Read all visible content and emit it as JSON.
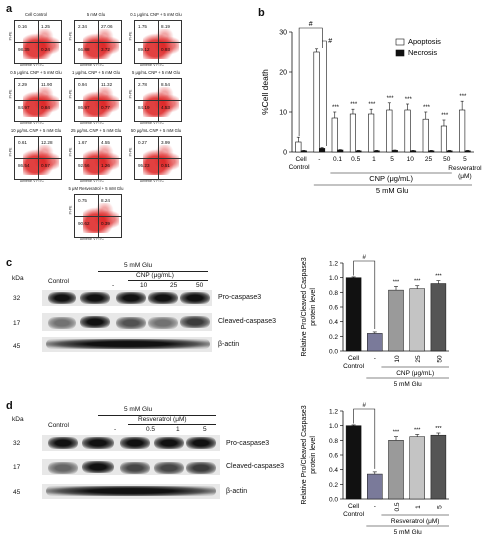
{
  "panel_a": {
    "letter": "a",
    "plots": [
      {
        "title": "Cell Control",
        "q": [
          "0.16",
          "1.25",
          "98.35",
          "0.24"
        ]
      },
      {
        "title": "5 mM Glu",
        "q": [
          "2.34",
          "27.06",
          "66.88",
          "3.72"
        ]
      },
      {
        "title": "0.1 μg/mL CNP + 5 mM Glu",
        "q": [
          "1.75",
          "8.19",
          "89.12",
          "0.93"
        ]
      },
      {
        "title": "0.5 μg/mL CNP + 5 mM Glu",
        "q": [
          "2.29",
          "11.90",
          "84.97",
          "0.84"
        ]
      },
      {
        "title": "1 μg/mL CNP + 5 mM Glu",
        "q": [
          "0.94",
          "11.32",
          "86.97",
          "0.77"
        ]
      },
      {
        "title": "5 μg/mL CNP + 5 mM Glu",
        "q": [
          "2.78",
          "8.54",
          "84.19",
          "4.53"
        ]
      },
      {
        "title": "10 μg/mL CNP + 5 mM Glu",
        "q": [
          "0.61",
          "12.28",
          "86.54",
          "0.57"
        ]
      },
      {
        "title": "25 μg/mL CNP + 5 mM Glu",
        "q": [
          "1.67",
          "4.55",
          "92.56",
          "1.26"
        ]
      },
      {
        "title": "50 μg/mL CNP + 5 mM Glu",
        "q": [
          "0.27",
          "3.99",
          "95.23",
          "0.51"
        ]
      },
      {
        "title": "5 μM Resveratrol + 5 mM Glu",
        "q": [
          "0.75",
          "8.24",
          "90.62",
          "0.39"
        ]
      }
    ],
    "x_axis": "Annexin V FITC",
    "y_axis": "PI-PE"
  },
  "panel_b": {
    "letter": "b",
    "chart_data": {
      "type": "bar",
      "ylabel": "%Cell death",
      "ylim": [
        0,
        30
      ],
      "yticks": [
        "0",
        "10",
        "20",
        "30"
      ],
      "categories": [
        "Cell Control",
        "-",
        "0.1",
        "0.5",
        "1",
        "5",
        "10",
        "25",
        "50",
        "5"
      ],
      "series": [
        {
          "name": "Apoptosis",
          "values": [
            2.5,
            25,
            8.5,
            9.5,
            9.5,
            10.5,
            10.5,
            8.2,
            6.5,
            10.5
          ],
          "errors": [
            1.2,
            0.8,
            1.5,
            1.2,
            1.2,
            1.8,
            1.5,
            1.8,
            1.5,
            2.2
          ],
          "color": "#ffffff"
        },
        {
          "name": "Necrosis",
          "values": [
            0.3,
            0.9,
            0.5,
            0.3,
            0.3,
            0.4,
            0.3,
            0.3,
            0.3,
            0.3
          ],
          "errors": [
            0.1,
            0.2,
            0.1,
            0.1,
            0.1,
            0.1,
            0.1,
            0.1,
            0.1,
            0.1
          ],
          "color": "#111111"
        }
      ],
      "significance": [
        "",
        "",
        "***",
        "***",
        "***",
        "***",
        "***",
        "***",
        "***",
        "***"
      ],
      "hash": "#",
      "group_labels": {
        "cnp": "CNP (μg/mL)",
        "res": "Resveratrol",
        "res_unit": "(μM)",
        "glu": "5 mM Glu"
      }
    }
  },
  "panel_c": {
    "letter": "c",
    "kda": [
      "kDa",
      "32",
      "17",
      "45"
    ],
    "blot_header": {
      "glu": "5 mM Glu",
      "agent": "CNP (μg/mL)",
      "lanes": [
        "Control",
        "-",
        "10",
        "25",
        "50"
      ]
    },
    "band_labels": [
      "Pro-caspase3",
      "Cleaved-caspase3",
      "β-actin"
    ],
    "chart_data": {
      "type": "bar",
      "ylabel": "Relative Pro/Cleaved Caspase3 protein level",
      "ylim": [
        0,
        1.2
      ],
      "yticks": [
        "0.0",
        "0.2",
        "0.4",
        "0.6",
        "0.8",
        "1.0",
        "1.2"
      ],
      "categories": [
        "Cell Control",
        "-",
        "10",
        "25",
        "50"
      ],
      "values": [
        1.0,
        0.24,
        0.83,
        0.85,
        0.92
      ],
      "errors": [
        0.01,
        0.02,
        0.05,
        0.04,
        0.04
      ],
      "colors": [
        "#111111",
        "#7a7a9a",
        "#9a9a9a",
        "#c4c4c4",
        "#555555"
      ],
      "significance": [
        "",
        "",
        "***",
        "***",
        "***"
      ],
      "hash": "#",
      "group_labels": {
        "agent": "CNP (μg/mL)",
        "glu": "5 mM Glu"
      }
    }
  },
  "panel_d": {
    "letter": "d",
    "kda": [
      "kDa",
      "32",
      "17",
      "45"
    ],
    "blot_header": {
      "glu": "5 mM Glu",
      "agent": "Resveratrol (μM)",
      "lanes": [
        "Control",
        "-",
        "0.5",
        "1",
        "5"
      ]
    },
    "band_labels": [
      "Pro-caspase3",
      "Cleaved-caspase3",
      "β-actin"
    ],
    "chart_data": {
      "type": "bar",
      "ylabel": "Relative Pro/Cleaved Caspase3 protein level",
      "ylim": [
        0,
        1.2
      ],
      "yticks": [
        "0.0",
        "0.2",
        "0.4",
        "0.6",
        "0.8",
        "1.0",
        "1.2"
      ],
      "categories": [
        "Cell Control",
        "-",
        "0.5",
        "1",
        "5"
      ],
      "values": [
        1.0,
        0.34,
        0.8,
        0.85,
        0.87
      ],
      "errors": [
        0.01,
        0.03,
        0.05,
        0.03,
        0.03
      ],
      "colors": [
        "#111111",
        "#7a7a9a",
        "#9a9a9a",
        "#c4c4c4",
        "#555555"
      ],
      "significance": [
        "",
        "",
        "***",
        "***",
        "***"
      ],
      "hash": "#",
      "group_labels": {
        "agent": "Resveratrol (μM)",
        "glu": "5 mM Glu"
      }
    }
  }
}
